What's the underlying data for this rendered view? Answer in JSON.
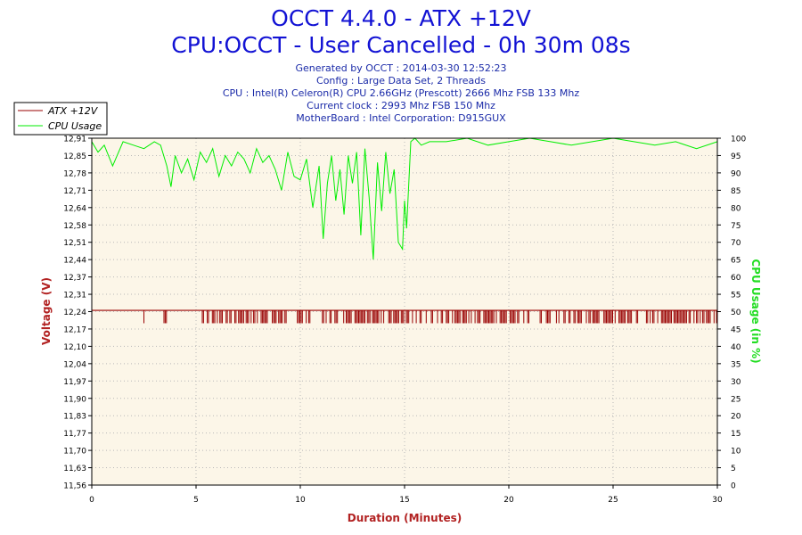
{
  "chart_data": {
    "type": "line",
    "title": "OCCT 4.4.0 - ATX +12V",
    "subtitle": "CPU:OCCT - User Cancelled - 0h 30m 08s",
    "info_lines": [
      "Generated by OCCT : 2014-03-30 12:52:23",
      "Config : Large Data Set, 2 Threads",
      "CPU : Intel(R) Celeron(R) CPU 2.66GHz (Prescott) 2666 Mhz FSB 133 Mhz",
      "Current clock : 2993 Mhz FSB 150 Mhz",
      "MotherBoard : Intel Corporation: D915GUX"
    ],
    "xlabel": "Duration (Minutes)",
    "ylabel_left": "Voltage (V)",
    "ylabel_right": "CPU Usage (in %)",
    "xlim": [
      0,
      30
    ],
    "ylim_left": [
      11.56,
      12.91
    ],
    "ylim_right": [
      0,
      100
    ],
    "x_ticks": [
      "0",
      "5",
      "10",
      "15",
      "20",
      "25",
      "30"
    ],
    "y_ticks_left": [
      "11,56",
      "11,63",
      "11,70",
      "11,77",
      "11,83",
      "11,90",
      "11,97",
      "12,04",
      "12,10",
      "12,17",
      "12,24",
      "12,31",
      "12,37",
      "12,44",
      "12,51",
      "12,58",
      "12,64",
      "12,71",
      "12,78",
      "12,85",
      "12,91"
    ],
    "y_ticks_right": [
      "0",
      "5",
      "10",
      "15",
      "20",
      "25",
      "30",
      "35",
      "40",
      "45",
      "50",
      "55",
      "60",
      "65",
      "70",
      "75",
      "80",
      "85",
      "90",
      "95",
      "100"
    ],
    "grid": true,
    "legend_placement": "top-left",
    "series": [
      {
        "name": "ATX +12V",
        "axis": "left",
        "color": "#990000",
        "base_value": 12.24,
        "dip_value": 12.19,
        "dip_segments": [
          [
            2.5,
            2.55
          ],
          [
            3.4,
            3.6
          ],
          [
            5.3,
            10.5
          ],
          [
            11.0,
            21.0
          ],
          [
            21.5,
            30.0
          ]
        ]
      },
      {
        "name": "CPU Usage",
        "axis": "right",
        "color": "#00ee00",
        "x": [
          0,
          0.3,
          0.6,
          1.0,
          1.5,
          2.0,
          2.5,
          3.0,
          3.3,
          3.6,
          3.8,
          4.0,
          4.3,
          4.6,
          4.9,
          5.2,
          5.5,
          5.8,
          6.1,
          6.4,
          6.7,
          7.0,
          7.3,
          7.6,
          7.9,
          8.2,
          8.5,
          8.8,
          9.1,
          9.4,
          9.7,
          10.0,
          10.3,
          10.6,
          10.9,
          11.1,
          11.3,
          11.5,
          11.7,
          11.9,
          12.1,
          12.3,
          12.5,
          12.7,
          12.9,
          13.1,
          13.3,
          13.5,
          13.7,
          13.9,
          14.1,
          14.3,
          14.5,
          14.7,
          14.9,
          15.0,
          15.1,
          15.3,
          15.5,
          15.8,
          16.2,
          17.0,
          18.0,
          19.0,
          20.0,
          21.0,
          22.0,
          23.0,
          24.0,
          25.0,
          26.0,
          27.0,
          28.0,
          29.0,
          30.0
        ],
        "values": [
          99,
          96,
          98,
          92,
          99,
          98,
          97,
          99,
          98,
          92,
          86,
          95,
          90,
          94,
          88,
          96,
          93,
          97,
          89,
          95,
          92,
          96,
          94,
          90,
          97,
          93,
          95,
          91,
          85,
          96,
          89,
          88,
          94,
          80,
          92,
          71,
          87,
          95,
          82,
          91,
          78,
          95,
          87,
          96,
          72,
          97,
          83,
          65,
          93,
          79,
          96,
          84,
          91,
          70,
          68,
          82,
          74,
          99,
          100,
          98,
          99,
          99,
          100,
          98,
          99,
          100,
          99,
          98,
          99,
          100,
          99,
          98,
          99,
          97,
          99
        ]
      }
    ]
  }
}
